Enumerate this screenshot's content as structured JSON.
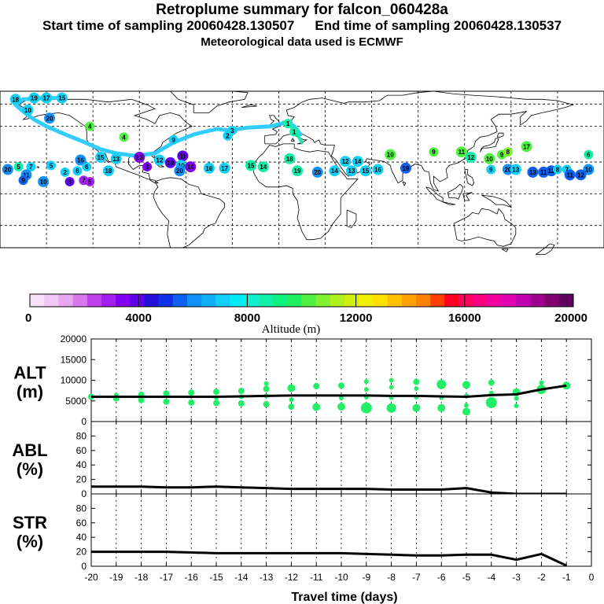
{
  "header": {
    "title": "Retroplume summary for falcon_060428a",
    "start_label": "Start time of sampling 20060428.130507",
    "end_label": "End time of sampling 20060428.130537",
    "met_label": "Meteorological data used is ECMWF"
  },
  "colors": {
    "trajectory": "#33ccff",
    "trajectory_end": "#22e6b0",
    "plot_marker": "#22ee66",
    "line": "#000000",
    "coast": "#000000",
    "grid": "#000000"
  },
  "colorbar": {
    "title": "Altitude (m)",
    "labels": [
      "0",
      "4000",
      "8000",
      "12000",
      "16000",
      "20000"
    ],
    "colors": [
      "#f8e0f8",
      "#f0c8f4",
      "#e8a8f0",
      "#d878ee",
      "#c040ee",
      "#a020f0",
      "#8000f0",
      "#6000e8",
      "#2010d8",
      "#1030e8",
      "#1060f0",
      "#1090f8",
      "#10b0f8",
      "#10d0f8",
      "#00ecf4",
      "#10f0d0",
      "#10f0a8",
      "#10f080",
      "#20f060",
      "#50f040",
      "#80f030",
      "#b0f020",
      "#d0f010",
      "#f0f000",
      "#ffe000",
      "#ffc000",
      "#ffa000",
      "#ff8000",
      "#ff4000",
      "#ff0020",
      "#ff0060",
      "#f80080",
      "#f000a0",
      "#e000b0",
      "#c000b0",
      "#a00090",
      "#800070",
      "#600060"
    ]
  },
  "map": {
    "trajectory_labels": [
      {
        "t": "18",
        "lon": -170,
        "lat": 70,
        "c": "#10d0f8"
      },
      {
        "t": "19",
        "lon": -158,
        "lat": 71,
        "c": "#10d0f8"
      },
      {
        "t": "17",
        "lon": -150,
        "lat": 71,
        "c": "#10d0f8"
      },
      {
        "t": "15",
        "lon": -140,
        "lat": 71,
        "c": "#10d0f8"
      },
      {
        "t": "10",
        "lon": -162,
        "lat": 62,
        "c": "#10d0f8"
      },
      {
        "t": "20",
        "lon": -148,
        "lat": 56,
        "c": "#1090f8"
      },
      {
        "t": "4",
        "lon": -122,
        "lat": 50,
        "c": "#50f040"
      },
      {
        "t": "4",
        "lon": -100,
        "lat": 42,
        "c": "#50f040"
      },
      {
        "t": "9",
        "lon": -68,
        "lat": 40,
        "c": "#10d0f8"
      },
      {
        "t": "3",
        "lon": -30,
        "lat": 47,
        "c": "#10d0f8"
      },
      {
        "t": "2",
        "lon": -33,
        "lat": 43,
        "c": "#10d0f8"
      },
      {
        "t": "1",
        "lon": 6,
        "lat": 52,
        "c": "#10f0a8"
      },
      {
        "t": "1",
        "lon": 10,
        "lat": 46,
        "c": "#10f0a8"
      },
      {
        "t": "5",
        "lon": -168,
        "lat": 20,
        "c": "#10f0a8"
      },
      {
        "t": "20",
        "lon": -175,
        "lat": 18,
        "c": "#1090f8"
      },
      {
        "t": "7",
        "lon": -160,
        "lat": 20,
        "c": "#10d0f8"
      },
      {
        "t": "11",
        "lon": -163,
        "lat": 14,
        "c": "#1090f8"
      },
      {
        "t": "9",
        "lon": -165,
        "lat": 10,
        "c": "#1060f0"
      },
      {
        "t": "10",
        "lon": -152,
        "lat": 9,
        "c": "#1090f8"
      },
      {
        "t": "5",
        "lon": -147,
        "lat": 21,
        "c": "#10d0f8"
      },
      {
        "t": "6",
        "lon": -130,
        "lat": 17,
        "c": "#10d0f8"
      },
      {
        "t": "16",
        "lon": -128,
        "lat": 25,
        "c": "#1090f8"
      },
      {
        "t": "6",
        "lon": -124,
        "lat": 20,
        "c": "#10d0f8"
      },
      {
        "t": "15",
        "lon": -115,
        "lat": 27,
        "c": "#10d0f8"
      },
      {
        "t": "13",
        "lon": -105,
        "lat": 26,
        "c": "#10d0f8"
      },
      {
        "t": "8",
        "lon": -135,
        "lat": 9,
        "c": "#6000e8"
      },
      {
        "t": "7",
        "lon": -126,
        "lat": 10,
        "c": "#a020f0"
      },
      {
        "t": "5",
        "lon": -122,
        "lat": 9,
        "c": "#a020f0"
      },
      {
        "t": "13",
        "lon": -90,
        "lat": 27,
        "c": "#8000f0"
      },
      {
        "t": "12",
        "lon": -77,
        "lat": 25,
        "c": "#10d0f8"
      },
      {
        "t": "19",
        "lon": -70,
        "lat": 23,
        "c": "#6000e8"
      },
      {
        "t": "3",
        "lon": -85,
        "lat": 20,
        "c": "#8000f0"
      },
      {
        "t": "11",
        "lon": -62,
        "lat": 28,
        "c": "#6000e8"
      },
      {
        "t": "10",
        "lon": -63,
        "lat": 21,
        "c": "#10d0f8"
      },
      {
        "t": "20",
        "lon": -64,
        "lat": 17,
        "c": "#1090f8"
      },
      {
        "t": "14",
        "lon": -57,
        "lat": 20,
        "c": "#8000f0"
      },
      {
        "t": "16",
        "lon": -45,
        "lat": 19,
        "c": "#10d0f8"
      },
      {
        "t": "17",
        "lon": -35,
        "lat": 19,
        "c": "#10d0f8"
      },
      {
        "t": "15",
        "lon": -18,
        "lat": 21,
        "c": "#10f0a8"
      },
      {
        "t": "14",
        "lon": -10,
        "lat": 20,
        "c": "#10f0a8"
      },
      {
        "t": "19",
        "lon": 12,
        "lat": 17,
        "c": "#10f0a8"
      },
      {
        "t": "18",
        "lon": 7,
        "lat": 26,
        "c": "#10f0a8"
      },
      {
        "t": "20",
        "lon": 25,
        "lat": 16,
        "c": "#1090f8"
      },
      {
        "t": "14",
        "lon": 36,
        "lat": 17,
        "c": "#10d0f8"
      },
      {
        "t": "12",
        "lon": 43,
        "lat": 24,
        "c": "#10d0f8"
      },
      {
        "t": "13",
        "lon": 47,
        "lat": 17,
        "c": "#10d0f8"
      },
      {
        "t": "14",
        "lon": 51,
        "lat": 24,
        "c": "#10d0f8"
      },
      {
        "t": "15",
        "lon": 56,
        "lat": 17,
        "c": "#10d0f8"
      },
      {
        "t": "16",
        "lon": 64,
        "lat": 18,
        "c": "#10d0f8"
      },
      {
        "t": "10",
        "lon": 72,
        "lat": 29,
        "c": "#50f040"
      },
      {
        "t": "19",
        "lon": 82,
        "lat": 19,
        "c": "#1060f0"
      },
      {
        "t": "9",
        "lon": 100,
        "lat": 31,
        "c": "#50f040"
      },
      {
        "t": "11",
        "lon": 118,
        "lat": 31,
        "c": "#50f040"
      },
      {
        "t": "12",
        "lon": 124,
        "lat": 27,
        "c": "#10f0a8"
      },
      {
        "t": "10",
        "lon": 136,
        "lat": 26,
        "c": "#50f040"
      },
      {
        "t": "9",
        "lon": 144,
        "lat": 29,
        "c": "#50f040"
      },
      {
        "t": "8",
        "lon": 148,
        "lat": 31,
        "c": "#80f030"
      },
      {
        "t": "9",
        "lon": 137,
        "lat": 18,
        "c": "#10d0f8"
      },
      {
        "t": "20",
        "lon": 148,
        "lat": 18,
        "c": "#1090f8"
      },
      {
        "t": "13",
        "lon": 153,
        "lat": 18,
        "c": "#10d0f8"
      },
      {
        "t": "17",
        "lon": 160,
        "lat": 35,
        "c": "#50f040"
      },
      {
        "t": "13",
        "lon": 164,
        "lat": 16,
        "c": "#1060f0"
      },
      {
        "t": "11",
        "lon": 171,
        "lat": 16,
        "c": "#1060f0"
      },
      {
        "t": "12",
        "lon": 176,
        "lat": 17,
        "c": "#1060f0"
      },
      {
        "t": "8",
        "lon": 180,
        "lat": 18,
        "c": "#10d0f8"
      },
      {
        "t": "7",
        "lon": 186,
        "lat": 18,
        "c": "#10d0f8"
      },
      {
        "t": "6",
        "lon": 200,
        "lat": 29,
        "c": "#10f0a8"
      },
      {
        "t": "10",
        "lon": 200,
        "lat": 18,
        "c": "#1090f8"
      },
      {
        "t": "11",
        "lon": 188,
        "lat": 14,
        "c": "#1060f0"
      },
      {
        "t": "12",
        "lon": 195,
        "lat": 14,
        "c": "#1060f0"
      },
      {
        "t": "18",
        "lon": -110,
        "lat": 17,
        "c": "#10d0f8"
      },
      {
        "t": "2",
        "lon": -138,
        "lat": 16,
        "c": "#10d0f8"
      }
    ]
  },
  "chart_data": [
    {
      "type": "scatter+line",
      "panel": "ALT",
      "title_lines": [
        "ALT",
        "(m)"
      ],
      "xlim": [
        -20,
        0
      ],
      "ylim": [
        0,
        20000
      ],
      "yticks": [
        0,
        5000,
        10000,
        15000,
        20000
      ],
      "line": {
        "x": [
          -20,
          -19,
          -18,
          -17,
          -16,
          -15,
          -14,
          -13,
          -12,
          -11,
          -10,
          -9,
          -8,
          -7,
          -6,
          -5,
          -4,
          -3,
          -2,
          -1
        ],
        "y": [
          6000,
          6000,
          6000,
          6000,
          6000,
          6000,
          6100,
          6200,
          6300,
          6300,
          6300,
          6300,
          6200,
          6200,
          6100,
          6000,
          6400,
          6600,
          7800,
          8700
        ]
      },
      "points": [
        {
          "x": -20,
          "y": 6000,
          "r": 4
        },
        {
          "x": -19,
          "y": 5600,
          "r": 4
        },
        {
          "x": -19,
          "y": 6400,
          "r": 3
        },
        {
          "x": -18,
          "y": 5200,
          "r": 4
        },
        {
          "x": -18,
          "y": 6500,
          "r": 4
        },
        {
          "x": -17,
          "y": 4800,
          "r": 4
        },
        {
          "x": -17,
          "y": 6800,
          "r": 4
        },
        {
          "x": -16,
          "y": 4600,
          "r": 4
        },
        {
          "x": -16,
          "y": 7000,
          "r": 4
        },
        {
          "x": -15,
          "y": 4500,
          "r": 4
        },
        {
          "x": -15,
          "y": 7200,
          "r": 4
        },
        {
          "x": -15,
          "y": 5800,
          "r": 3
        },
        {
          "x": -14,
          "y": 4400,
          "r": 4
        },
        {
          "x": -14,
          "y": 7400,
          "r": 4
        },
        {
          "x": -14,
          "y": 6000,
          "r": 3
        },
        {
          "x": -13,
          "y": 4200,
          "r": 4
        },
        {
          "x": -13,
          "y": 7900,
          "r": 4
        },
        {
          "x": -13,
          "y": 6200,
          "r": 3
        },
        {
          "x": -13,
          "y": 9200,
          "r": 3
        },
        {
          "x": -12,
          "y": 3600,
          "r": 4
        },
        {
          "x": -12,
          "y": 8100,
          "r": 5
        },
        {
          "x": -12,
          "y": 5300,
          "r": 3
        },
        {
          "x": -11,
          "y": 3500,
          "r": 5
        },
        {
          "x": -11,
          "y": 8600,
          "r": 4
        },
        {
          "x": -10,
          "y": 3600,
          "r": 5
        },
        {
          "x": -10,
          "y": 8700,
          "r": 4
        },
        {
          "x": -10,
          "y": 5700,
          "r": 3
        },
        {
          "x": -9,
          "y": 3300,
          "r": 7
        },
        {
          "x": -9,
          "y": 9700,
          "r": 3
        },
        {
          "x": -9,
          "y": 5900,
          "r": 3
        },
        {
          "x": -9,
          "y": 7800,
          "r": 3
        },
        {
          "x": -8,
          "y": 3300,
          "r": 6
        },
        {
          "x": -8,
          "y": 10000,
          "r": 3
        },
        {
          "x": -8,
          "y": 5800,
          "r": 3
        },
        {
          "x": -8,
          "y": 8300,
          "r": 3
        },
        {
          "x": -7,
          "y": 3300,
          "r": 5
        },
        {
          "x": -7,
          "y": 9600,
          "r": 4
        },
        {
          "x": -7,
          "y": 5900,
          "r": 3
        },
        {
          "x": -7,
          "y": 8000,
          "r": 3
        },
        {
          "x": -6,
          "y": 3300,
          "r": 5
        },
        {
          "x": -6,
          "y": 9000,
          "r": 6
        },
        {
          "x": -6,
          "y": 5800,
          "r": 3
        },
        {
          "x": -5,
          "y": 2400,
          "r": 5
        },
        {
          "x": -5,
          "y": 8900,
          "r": 5
        },
        {
          "x": -5,
          "y": 3900,
          "r": 3
        },
        {
          "x": -5,
          "y": 6200,
          "r": 3
        },
        {
          "x": -4,
          "y": 4600,
          "r": 7
        },
        {
          "x": -4,
          "y": 9400,
          "r": 4
        },
        {
          "x": -4,
          "y": 6900,
          "r": 3
        },
        {
          "x": -3,
          "y": 3800,
          "r": 3
        },
        {
          "x": -3,
          "y": 7100,
          "r": 5
        },
        {
          "x": -3,
          "y": 5600,
          "r": 3
        },
        {
          "x": -2,
          "y": 7800,
          "r": 6
        },
        {
          "x": -2,
          "y": 9400,
          "r": 3
        },
        {
          "x": -1,
          "y": 8700,
          "r": 5
        }
      ]
    },
    {
      "type": "line",
      "panel": "ABL",
      "title_lines": [
        "ABL",
        "(%)"
      ],
      "xlim": [
        -20,
        0
      ],
      "ylim": [
        0,
        100
      ],
      "yticks": [
        0,
        20,
        40,
        60,
        80
      ],
      "x": [
        -20,
        -19,
        -18,
        -17,
        -16,
        -15,
        -14,
        -13,
        -12,
        -11,
        -10,
        -9,
        -8,
        -7,
        -6,
        -5,
        -4,
        -3,
        -2,
        -1
      ],
      "y": [
        10,
        10,
        10,
        9,
        9,
        10,
        9,
        8,
        7,
        7,
        7,
        7,
        6,
        6,
        6,
        8,
        2,
        0,
        0,
        0
      ]
    },
    {
      "type": "line",
      "panel": "STR",
      "title_lines": [
        "STR",
        "(%)"
      ],
      "xlim": [
        -20,
        0
      ],
      "ylim": [
        0,
        100
      ],
      "yticks": [
        0,
        20,
        40,
        60,
        80
      ],
      "x": [
        -20,
        -19,
        -18,
        -17,
        -16,
        -15,
        -14,
        -13,
        -12,
        -11,
        -10,
        -9,
        -8,
        -7,
        -6,
        -5,
        -4,
        -3,
        -2,
        -1
      ],
      "y": [
        20,
        20,
        20,
        20,
        19,
        18,
        18,
        18,
        18,
        18,
        18,
        17,
        16,
        15,
        15,
        16,
        16,
        9,
        17,
        1
      ],
      "xticks": [
        -20,
        -19,
        -18,
        -17,
        -16,
        -15,
        -14,
        -13,
        -12,
        -11,
        -10,
        -9,
        -8,
        -7,
        -6,
        -5,
        -4,
        -3,
        -2,
        -1,
        0
      ],
      "xtick_labels": [
        "-20",
        "-19",
        "-18",
        "-17",
        "-16",
        "-15",
        "-14",
        "-13",
        "-12",
        "-11",
        "-10",
        "-9",
        "-8",
        "-7",
        "-6",
        "-5",
        "-4",
        "-3",
        "-2",
        "-1",
        "0"
      ],
      "xlabel": "Travel time (days)"
    }
  ]
}
